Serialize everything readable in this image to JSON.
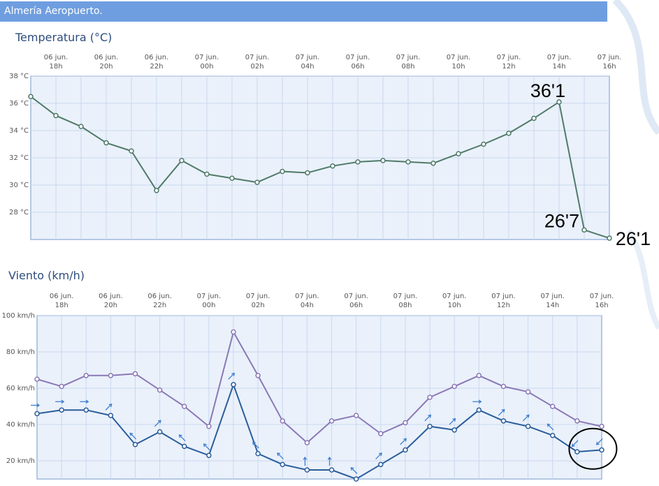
{
  "header": {
    "location": "Almería Aeropuerto."
  },
  "colors": {
    "title_bar": "#6f9ee0",
    "plot_bg": "#eaf1fb",
    "plot_border": "#9fb8dc",
    "grid": "#c9d8ee",
    "temp_line": "#4f7a68",
    "gust_line": "#8b78b5",
    "wind_line": "#2b5d9a",
    "wind_arrow": "#3f7fcf",
    "axis_text": "#555555"
  },
  "chart_data": [
    {
      "type": "line",
      "title": "Temperatura (°C)",
      "x_labels": [
        {
          "date": "06 jun.",
          "hour": "18h"
        },
        {
          "date": "06 jun.",
          "hour": "20h"
        },
        {
          "date": "06 jun.",
          "hour": "22h"
        },
        {
          "date": "07 jun.",
          "hour": "00h"
        },
        {
          "date": "07 jun.",
          "hour": "02h"
        },
        {
          "date": "07 jun.",
          "hour": "04h"
        },
        {
          "date": "07 jun.",
          "hour": "06h"
        },
        {
          "date": "07 jun.",
          "hour": "08h"
        },
        {
          "date": "07 jun.",
          "hour": "10h"
        },
        {
          "date": "07 jun.",
          "hour": "12h"
        },
        {
          "date": "07 jun.",
          "hour": "14h"
        },
        {
          "date": "07 jun.",
          "hour": "16h"
        }
      ],
      "x_hours": [
        17,
        18,
        19,
        20,
        21,
        22,
        23,
        0,
        1,
        2,
        3,
        4,
        5,
        6,
        7,
        8,
        9,
        10,
        11,
        12,
        13,
        14,
        15,
        16
      ],
      "y_ticks": [
        "38 °C",
        "36 °C",
        "34 °C",
        "32 °C",
        "30 °C",
        "28 °C"
      ],
      "y_tick_values": [
        38,
        36,
        34,
        32,
        30,
        28
      ],
      "ylim": [
        26,
        38
      ],
      "grid": true,
      "series": [
        {
          "values": [
            36.5,
            35.1,
            34.3,
            33.1,
            32.5,
            29.6,
            31.8,
            30.8,
            30.5,
            30.2,
            31.0,
            30.9,
            31.4,
            31.7,
            31.8,
            31.7,
            31.6,
            32.3,
            33.0,
            33.8,
            34.9,
            36.1,
            26.7,
            26.1
          ]
        }
      ],
      "annotations": [
        {
          "text": "36'1",
          "point_index": 21
        },
        {
          "text": "26'7",
          "point_index": 22
        },
        {
          "text": "26'1",
          "point_index": 23
        }
      ]
    },
    {
      "type": "line",
      "title": "Viento (km/h)",
      "x_labels": [
        {
          "date": "06 jun.",
          "hour": "18h"
        },
        {
          "date": "06 jun.",
          "hour": "20h"
        },
        {
          "date": "06 jun.",
          "hour": "22h"
        },
        {
          "date": "07 jun.",
          "hour": "00h"
        },
        {
          "date": "07 jun.",
          "hour": "02h"
        },
        {
          "date": "07 jun.",
          "hour": "04h"
        },
        {
          "date": "07 jun.",
          "hour": "06h"
        },
        {
          "date": "07 jun.",
          "hour": "08h"
        },
        {
          "date": "07 jun.",
          "hour": "10h"
        },
        {
          "date": "07 jun.",
          "hour": "12h"
        },
        {
          "date": "07 jun.",
          "hour": "14h"
        },
        {
          "date": "07 jun.",
          "hour": "16h"
        }
      ],
      "x_hours": [
        17,
        18,
        19,
        20,
        21,
        22,
        23,
        0,
        1,
        2,
        3,
        4,
        5,
        6,
        7,
        8,
        9,
        10,
        11,
        12,
        13,
        14,
        15,
        16
      ],
      "y_ticks": [
        "100 km/h",
        "80 km/h",
        "60 km/h",
        "40 km/h",
        "20 km/h"
      ],
      "y_tick_values": [
        100,
        80,
        60,
        40,
        20
      ],
      "ylim": [
        10,
        100
      ],
      "grid": true,
      "series": [
        {
          "values": [
            65,
            61,
            67,
            67,
            68,
            59,
            50,
            39,
            91,
            67,
            42,
            30,
            42,
            45,
            35,
            41,
            55,
            61,
            67,
            61,
            58,
            50,
            42,
            39
          ]
        },
        {
          "values": [
            46,
            48,
            48,
            45,
            29,
            36,
            28,
            23,
            62,
            24,
            18,
            15,
            15,
            10,
            18,
            26,
            39,
            37,
            48,
            42,
            39,
            34,
            25,
            26
          ],
          "wind_direction_deg": [
            90,
            90,
            90,
            45,
            315,
            45,
            315,
            315,
            45,
            315,
            315,
            0,
            0,
            315,
            45,
            45,
            45,
            45,
            90,
            45,
            45,
            315,
            225,
            225
          ]
        }
      ],
      "highlight": {
        "point_indices": [
          22,
          23
        ]
      }
    }
  ]
}
